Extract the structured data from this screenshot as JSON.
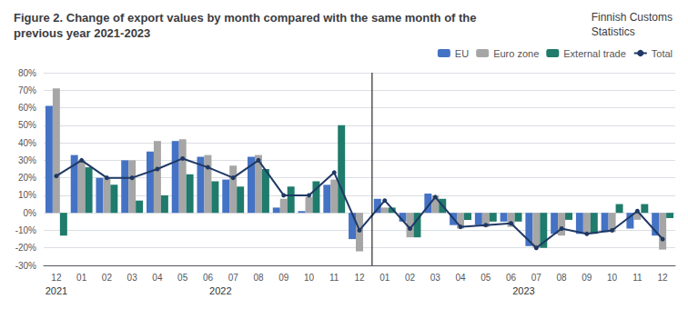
{
  "chart_data": {
    "type": "bar",
    "title": "Figure 2. Change of export values by month compared with the same month of the previous year 2021-2023",
    "subtitle": "Finnish Customs\nStatistics",
    "annotations": [
      "2021",
      "2022",
      "2023"
    ],
    "categories": [
      "12",
      "01",
      "02",
      "03",
      "04",
      "05",
      "06",
      "07",
      "08",
      "09",
      "10",
      "11",
      "12",
      "01",
      "02",
      "03",
      "04",
      "05",
      "06",
      "07",
      "08",
      "09",
      "10",
      "11",
      "12"
    ],
    "series": [
      {
        "name": "EU",
        "type": "bar",
        "color": "#4472C4",
        "values": [
          61,
          33,
          20,
          30,
          35,
          41,
          32,
          19,
          32,
          3,
          1,
          16,
          -15,
          8,
          -5,
          11,
          -7,
          -7,
          -5,
          -19,
          -12,
          -12,
          -11,
          -9,
          -13
        ]
      },
      {
        "name": "Euro zone",
        "type": "bar",
        "color": "#A6A6A6",
        "values": [
          71,
          30,
          20,
          30,
          41,
          42,
          33,
          27,
          33,
          8,
          9,
          19,
          -22,
          3,
          -14,
          10,
          -9,
          -8,
          -8,
          -20,
          -13,
          -12,
          -11,
          -4,
          -21
        ]
      },
      {
        "name": "External trade",
        "type": "bar",
        "color": "#1F7B6B",
        "values": [
          -13,
          26,
          16,
          7,
          10,
          22,
          18,
          15,
          25,
          15,
          18,
          50,
          0,
          3,
          -14,
          8,
          -4,
          -5,
          -5,
          -20,
          -4,
          -12,
          5,
          5,
          -3
        ]
      },
      {
        "name": "Total",
        "type": "line",
        "color": "#1F3864",
        "marker": "circle",
        "values": [
          21,
          30,
          20,
          20,
          25,
          31,
          26,
          20,
          30,
          10,
          10,
          23,
          -10,
          7,
          -9,
          9,
          -8,
          -7,
          -6,
          -20,
          -9,
          -12,
          -10,
          1,
          -15
        ]
      }
    ],
    "ylim": [
      -30,
      80
    ],
    "yticks": [
      {
        "value": -30,
        "label": "-30%"
      },
      {
        "value": -20,
        "label": "-20%"
      },
      {
        "value": -10,
        "label": "-10%"
      },
      {
        "value": 0,
        "label": "0%"
      },
      {
        "value": 10,
        "label": "10%"
      },
      {
        "value": 20,
        "label": "20%"
      },
      {
        "value": 30,
        "label": "30%"
      },
      {
        "value": 40,
        "label": "40%"
      },
      {
        "value": 50,
        "label": "50%"
      },
      {
        "value": 60,
        "label": "60%"
      },
      {
        "value": 70,
        "label": "70%"
      },
      {
        "value": 80,
        "label": "80%"
      }
    ],
    "grid": true,
    "legend": "upper right"
  }
}
